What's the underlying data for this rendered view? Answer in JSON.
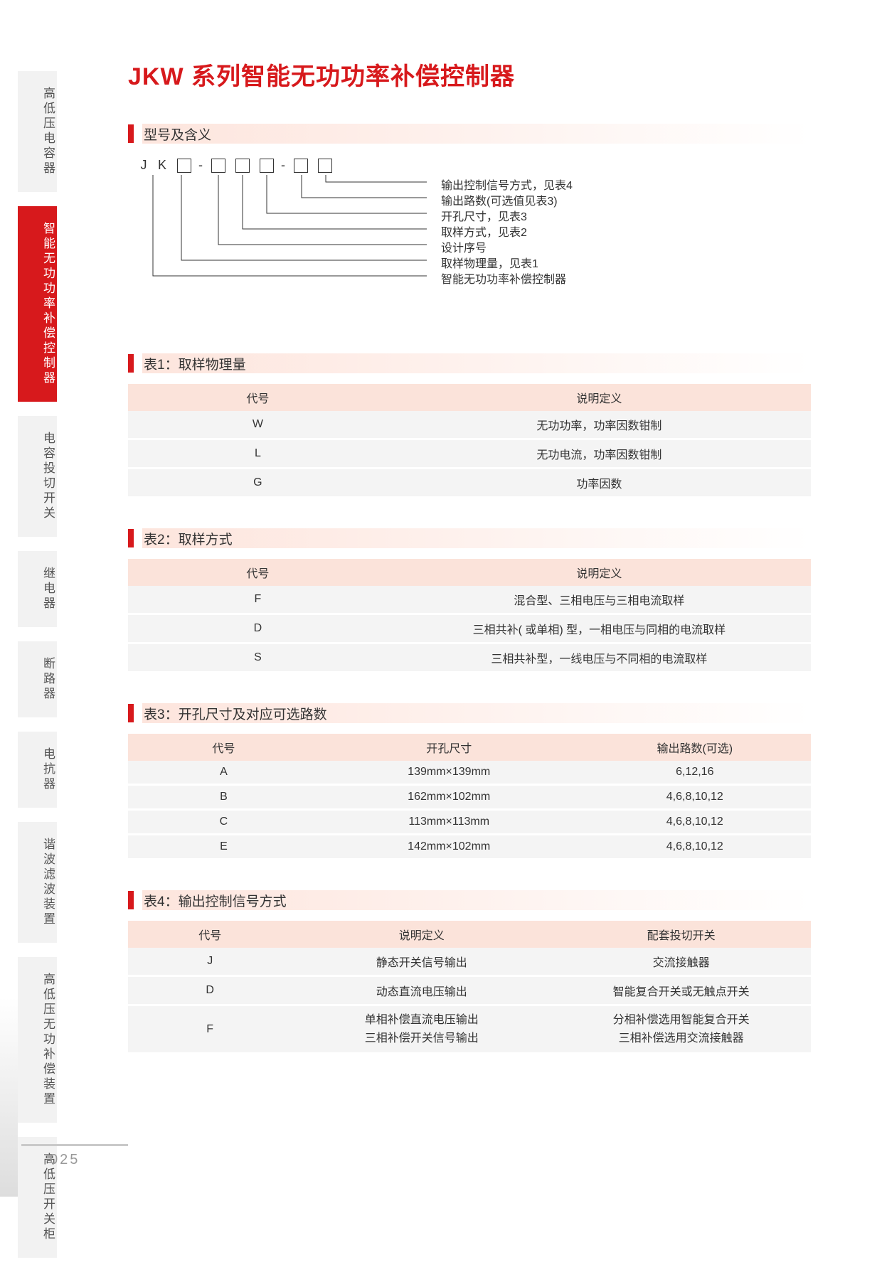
{
  "colors": {
    "accent": "#d7191c",
    "header_bg": "#fbe3da",
    "row_bg": "#f4f4f4",
    "sidebar_inactive_bg": "#f2f2f2",
    "sidebar_inactive_text": "#555555",
    "heading_strip_start": "#fde5dd"
  },
  "page_number": "025",
  "main_title": "JKW 系列智能无功功率补偿控制器",
  "sidebar": {
    "items": [
      {
        "label": "高低压电容器",
        "active": false
      },
      {
        "label": "智能无功功率补偿控制器",
        "active": true
      },
      {
        "label": "电容投切开关",
        "active": false
      },
      {
        "label": "继电器",
        "active": false
      },
      {
        "label": "断路器",
        "active": false
      },
      {
        "label": "电抗器",
        "active": false
      },
      {
        "label": "谐波滤波装置",
        "active": false
      },
      {
        "label": "高低压无功补偿装置",
        "active": false
      },
      {
        "label": "高低压开关柜",
        "active": false
      }
    ]
  },
  "model_section": {
    "heading": "型号及含义",
    "prefix": "J K",
    "pattern_boxes": 6,
    "leaders": [
      "输出控制信号方式，见表4",
      "输出路数(可选值见表3)",
      "开孔尺寸，见表3",
      "取样方式，见表2",
      "设计序号",
      "取样物理量，见表1",
      "智能无功功率补偿控制器"
    ]
  },
  "table1": {
    "heading": "表1：取样物理量",
    "columns": [
      "代号",
      "说明定义"
    ],
    "rows": [
      [
        "W",
        "无功功率，功率因数钳制"
      ],
      [
        "L",
        "无功电流，功率因数钳制"
      ],
      [
        "G",
        "功率因数"
      ]
    ]
  },
  "table2": {
    "heading": "表2：取样方式",
    "columns": [
      "代号",
      "说明定义"
    ],
    "rows": [
      [
        "F",
        "混合型、三相电压与三相电流取样"
      ],
      [
        "D",
        "三相共补( 或单相) 型，一相电压与同相的电流取样"
      ],
      [
        "S",
        "三相共补型，一线电压与不同相的电流取样"
      ]
    ]
  },
  "table3": {
    "heading": "表3：开孔尺寸及对应可选路数",
    "columns": [
      "代号",
      "开孔尺寸",
      "输出路数(可选)"
    ],
    "rows": [
      [
        "A",
        "139mm×139mm",
        "6,12,16"
      ],
      [
        "B",
        "162mm×102mm",
        "4,6,8,10,12"
      ],
      [
        "C",
        "113mm×113mm",
        "4,6,8,10,12"
      ],
      [
        "E",
        "142mm×102mm",
        "4,6,8,10,12"
      ]
    ]
  },
  "table4": {
    "heading": "表4：输出控制信号方式",
    "columns": [
      "代号",
      "说明定义",
      "配套投切开关"
    ],
    "rows": [
      [
        "J",
        "静态开关信号输出",
        "交流接触器"
      ],
      [
        "D",
        "动态直流电压输出",
        "智能复合开关或无触点开关"
      ],
      [
        "F",
        "单相补偿直流电压输出\n三相补偿开关信号输出",
        "分相补偿选用智能复合开关\n三相补偿选用交流接触器"
      ]
    ]
  }
}
